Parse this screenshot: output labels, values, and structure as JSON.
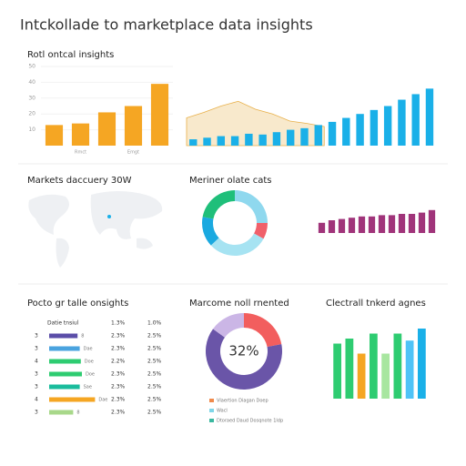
{
  "title": "Intckollade to marketplace data insights",
  "map": {
    "title": "Markets daccuery 30W"
  },
  "table": {
    "title": "Pocto gr talle onsights",
    "header": [
      "Datie tnsiul",
      "1.3%",
      "1.0%"
    ],
    "rows": [
      {
        "n": "3",
        "bar": 26,
        "color": "#5b4ea8",
        "label": "8",
        "a": "2.3%",
        "b": "2.5%"
      },
      {
        "n": "3",
        "bar": 28,
        "color": "#4aa3df",
        "label": "Dae",
        "a": "2.3%",
        "b": "2.5%"
      },
      {
        "n": "4",
        "bar": 29,
        "color": "#2ecc71",
        "label": "Doe",
        "a": "2.2%",
        "b": "2.5%"
      },
      {
        "n": "3",
        "bar": 30,
        "color": "#2ecc71",
        "label": "Doe",
        "a": "2.3%",
        "b": "2.5%"
      },
      {
        "n": "3",
        "bar": 28,
        "color": "#1abc9c",
        "label": "Sae",
        "a": "2.3%",
        "b": "2.5%"
      },
      {
        "n": "4",
        "bar": 42,
        "color": "#f5a623",
        "label": "Dae",
        "a": "2.3%",
        "b": "2.5%"
      },
      {
        "n": "3",
        "bar": 22,
        "color": "#a8d88a",
        "label": "8",
        "a": "2.3%",
        "b": "2.5%"
      }
    ]
  },
  "chart_data": [
    {
      "type": "bar",
      "title": "Rotl ontcal insights",
      "categories": [
        null,
        "Rmct",
        null,
        "Emgt",
        null
      ],
      "values": [
        13,
        14,
        21,
        25,
        39
      ],
      "color": "#f5a623",
      "ylim": [
        0,
        50
      ],
      "yticks": [
        10,
        20,
        30,
        40,
        50
      ]
    },
    {
      "type": "combo",
      "ylim": [
        0,
        100
      ],
      "series": [
        {
          "type": "area",
          "color": "#f2d49a",
          "values": [
            35,
            42,
            50,
            56,
            46,
            40,
            31,
            28,
            24
          ]
        },
        {
          "type": "bar",
          "color": "#1ab0e8",
          "values": [
            8,
            10,
            12,
            12,
            15,
            14,
            17,
            20,
            22,
            26,
            30,
            35,
            40,
            45,
            50,
            58,
            65,
            72
          ]
        }
      ]
    },
    {
      "type": "donut",
      "title": "Meriner olate cats",
      "values": [
        25,
        8,
        30,
        15,
        22
      ],
      "colors": [
        "#8fd8ee",
        "#f0606a",
        "#a6e3f2",
        "#1aa9e0",
        "#1fbf7a"
      ]
    },
    {
      "type": "bar",
      "values": [
        8,
        10,
        11,
        12,
        13,
        13,
        14,
        14,
        15,
        15,
        16,
        18
      ],
      "color": "#a0347a",
      "ylim": [
        0,
        40
      ]
    },
    {
      "type": "donut",
      "title": "Marcome noll rnented",
      "center_label": "32%",
      "values": [
        22,
        63,
        15
      ],
      "colors": [
        "#f25e5e",
        "#6a55a8",
        "#cbb6e6"
      ],
      "legend": [
        {
          "name": "Vlaertion Diagan Doep",
          "color": "#f08a4b"
        },
        {
          "name": "Wacl",
          "color": "#7fd6e8"
        },
        {
          "name": "Dtoraed Daud Dosqnote 1ldp",
          "color": "#3bb8a0"
        }
      ]
    },
    {
      "type": "bar",
      "title": "Clectrall tnkerd agnes",
      "values": [
        55,
        60,
        45,
        65,
        45,
        65,
        58,
        70
      ],
      "ylim": [
        0,
        80
      ],
      "colors": [
        "#2ecc71",
        "#2ecc71",
        "#f5a623",
        "#2ecc71",
        "#a8e6a0",
        "#2ecc71",
        "#4fc3f7",
        "#1ab0e8"
      ]
    }
  ]
}
